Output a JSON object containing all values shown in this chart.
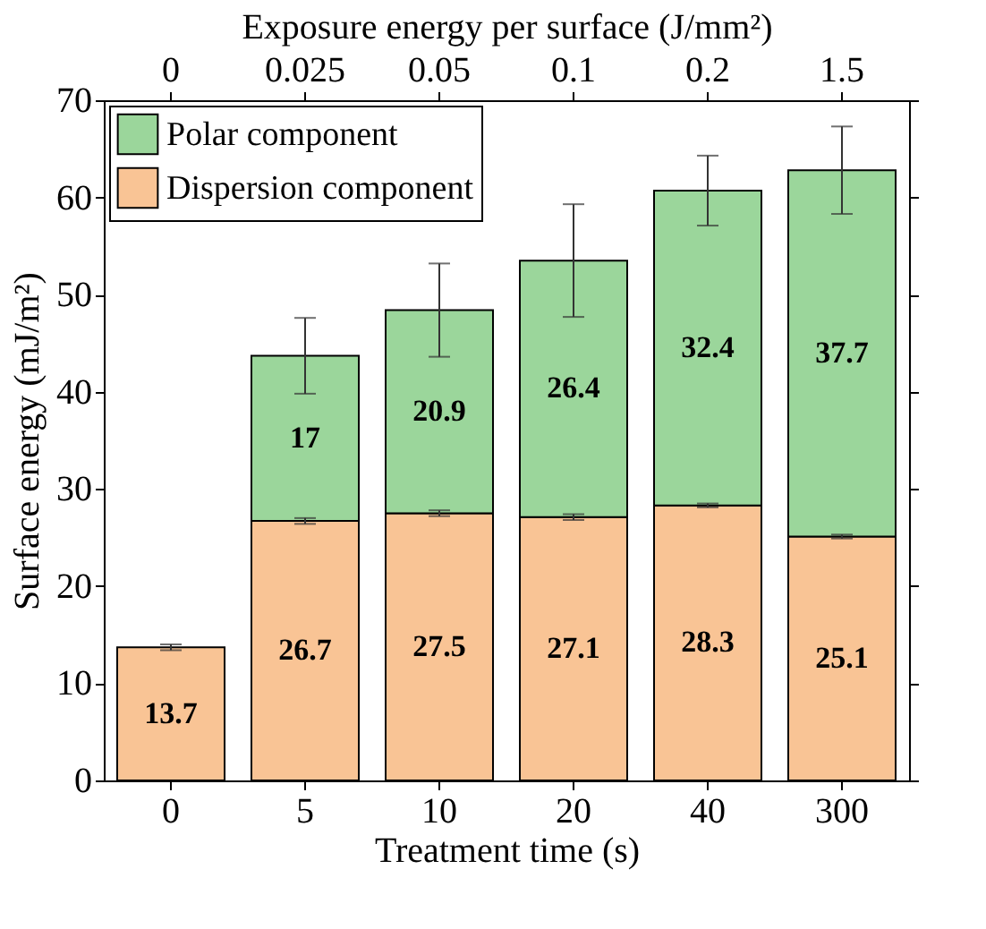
{
  "chart_data": {
    "type": "bar",
    "stacked": true,
    "xlabel": "Treatment time (s)",
    "ylabel": "Surface energy (mJ/m²)",
    "x2label": "Exposure energy per surface (J/mm²)",
    "categories": [
      "0",
      "5",
      "10",
      "20",
      "40",
      "300"
    ],
    "annotations": [
      {
        "text": "0",
        "x": "0"
      },
      {
        "text": "0.025",
        "x": "5"
      },
      {
        "text": "0.05",
        "x": "10"
      },
      {
        "text": "0.1",
        "x": "20"
      },
      {
        "text": "0.2",
        "x": "40"
      },
      {
        "text": "1.5",
        "x": "300"
      }
    ],
    "series": [
      {
        "name": "Dispersion component",
        "color": "#f9c495",
        "values": [
          13.7,
          26.7,
          27.5,
          27.1,
          28.3,
          25.1
        ],
        "errors": [
          0.3,
          0.3,
          0.3,
          0.3,
          0.2,
          0.2
        ]
      },
      {
        "name": "Polar component",
        "color": "#9bd69b",
        "values": [
          null,
          17,
          20.9,
          26.4,
          32.4,
          37.7
        ],
        "errors": [
          null,
          3.9,
          4.8,
          5.8,
          3.6,
          4.5
        ]
      }
    ],
    "ylim": [
      0,
      70
    ],
    "yticks": [
      0,
      10,
      20,
      30,
      40,
      50,
      60,
      70
    ],
    "data_labels": true,
    "legend": "top left",
    "grid": false
  }
}
